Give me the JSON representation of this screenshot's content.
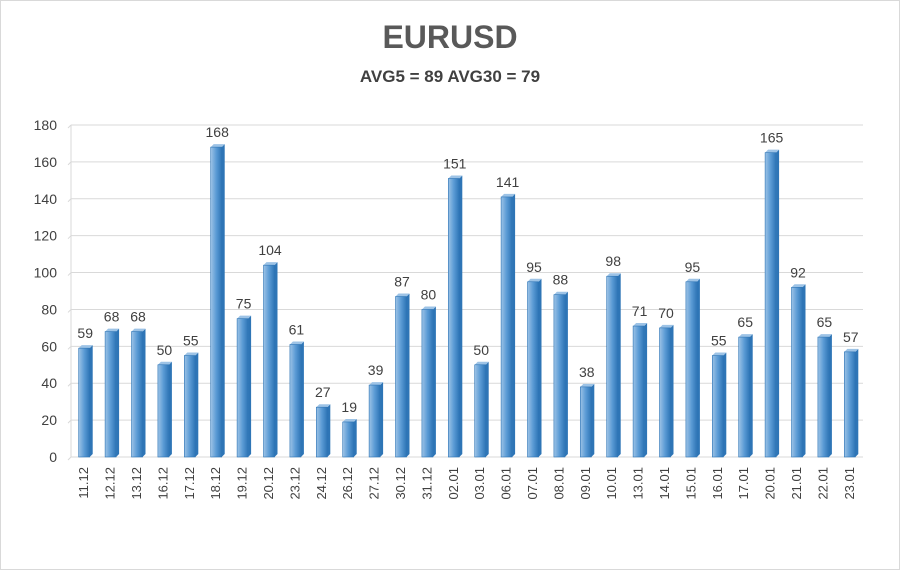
{
  "chart_data": {
    "type": "bar",
    "title": "EURUSD",
    "subtitle": "AVG5 = 89 AVG30 = 79",
    "categories": [
      "11.12",
      "12.12",
      "13.12",
      "16.12",
      "17.12",
      "18.12",
      "19.12",
      "20.12",
      "23.12",
      "24.12",
      "26.12",
      "27.12",
      "30.12",
      "31.12",
      "02.01",
      "03.01",
      "06.01",
      "07.01",
      "08.01",
      "09.01",
      "10.01",
      "13.01",
      "14.01",
      "15.01",
      "16.01",
      "17.01",
      "20.01",
      "21.01",
      "22.01",
      "23.01"
    ],
    "values": [
      59,
      68,
      68,
      50,
      55,
      168,
      75,
      104,
      61,
      27,
      19,
      39,
      87,
      80,
      151,
      50,
      141,
      95,
      88,
      38,
      98,
      71,
      70,
      95,
      55,
      65,
      165,
      92,
      65,
      57
    ],
    "ylim": [
      0,
      180
    ],
    "yticks": [
      0,
      20,
      40,
      60,
      80,
      100,
      120,
      140,
      160,
      180
    ],
    "grid": true,
    "colors": {
      "bar": "#5b9bd5",
      "bar_light": "#9dc3e6",
      "bar_dark": "#2e75b6",
      "grid": "#d9d9d9",
      "text": "#404040"
    }
  }
}
